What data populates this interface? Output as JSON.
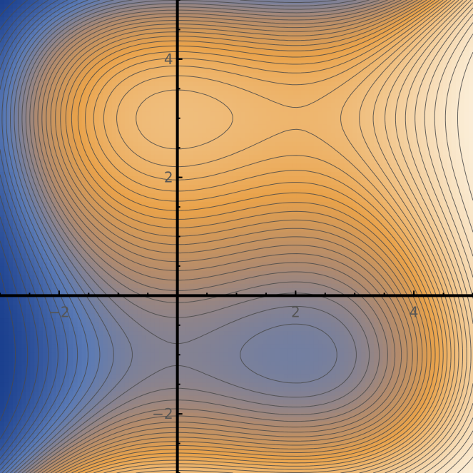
{
  "chart_data": {
    "type": "contour",
    "title": "",
    "xlabel": "",
    "ylabel": "",
    "xlim": [
      -3,
      5
    ],
    "ylim": [
      -3,
      5
    ],
    "x_ticks": [
      {
        "value": -2,
        "label": "−2"
      },
      {
        "value": 2,
        "label": "2"
      },
      {
        "value": 4,
        "label": "4"
      }
    ],
    "y_ticks": [
      {
        "value": -2,
        "label": "−2"
      },
      {
        "value": 2,
        "label": "2"
      },
      {
        "value": 4,
        "label": "4"
      }
    ],
    "axes_origin": [
      0,
      0
    ],
    "minor_ticks_per_unit": 2,
    "grid": false,
    "legend": "none",
    "colormap": [
      "#1a3f8e",
      "#5a7ab5",
      "#b08a6e",
      "#e9a24a",
      "#f2c890",
      "#fbeed8"
    ],
    "features": [
      {
        "kind": "local-min",
        "x": 2,
        "y": 3
      },
      {
        "kind": "local-max",
        "x": 0,
        "y": -1
      },
      {
        "kind": "saddle",
        "x": 0,
        "y": 3
      },
      {
        "kind": "saddle",
        "x": 2,
        "y": -1
      }
    ],
    "contour_levels": 40
  }
}
